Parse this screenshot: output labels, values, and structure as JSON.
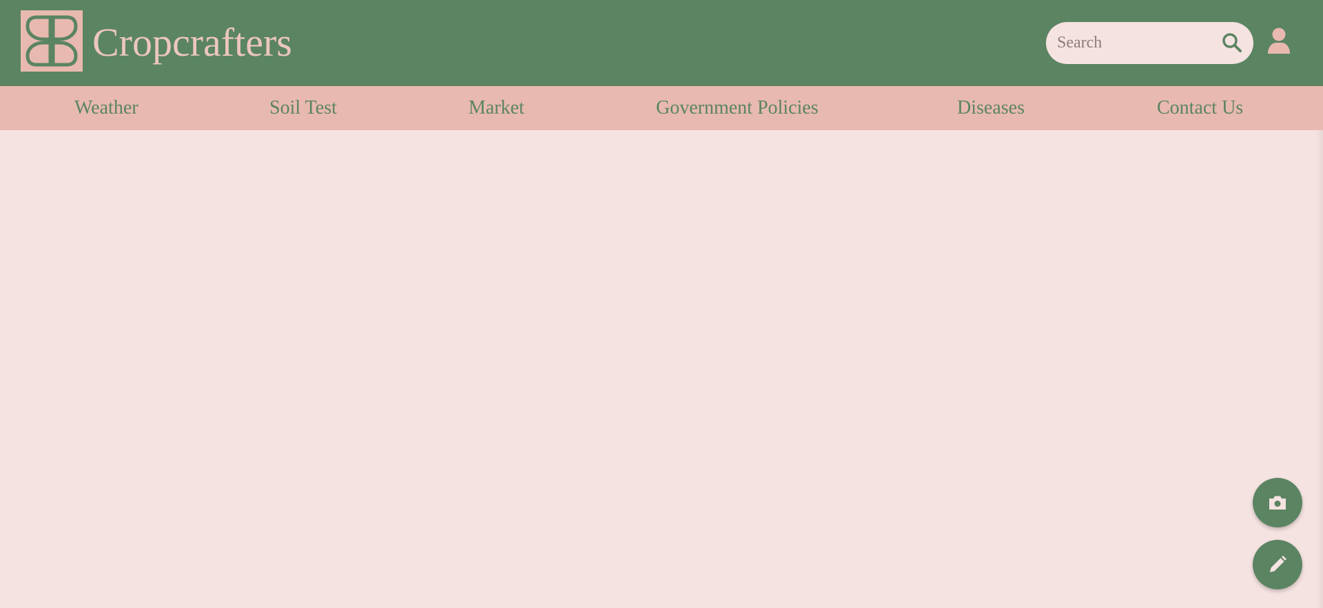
{
  "brand": {
    "name": "Cropcrafters",
    "logo_icon": "four-petal-leaf-logo"
  },
  "search": {
    "placeholder": "Search",
    "value": "",
    "icon": "search-icon"
  },
  "user": {
    "icon": "user-icon"
  },
  "nav": {
    "items": [
      {
        "label": "Weather"
      },
      {
        "label": "Soil Test"
      },
      {
        "label": "Market"
      },
      {
        "label": "Government Policies"
      },
      {
        "label": "Diseases"
      },
      {
        "label": "Contact Us"
      }
    ]
  },
  "fabs": [
    {
      "icon": "camera-icon"
    },
    {
      "icon": "pencil-icon"
    }
  ],
  "colors": {
    "primary_green": "#5b8462",
    "accent_pink": "#e8b9af",
    "background": "#f5e3e1",
    "brand_text": "#ecc7bd"
  }
}
